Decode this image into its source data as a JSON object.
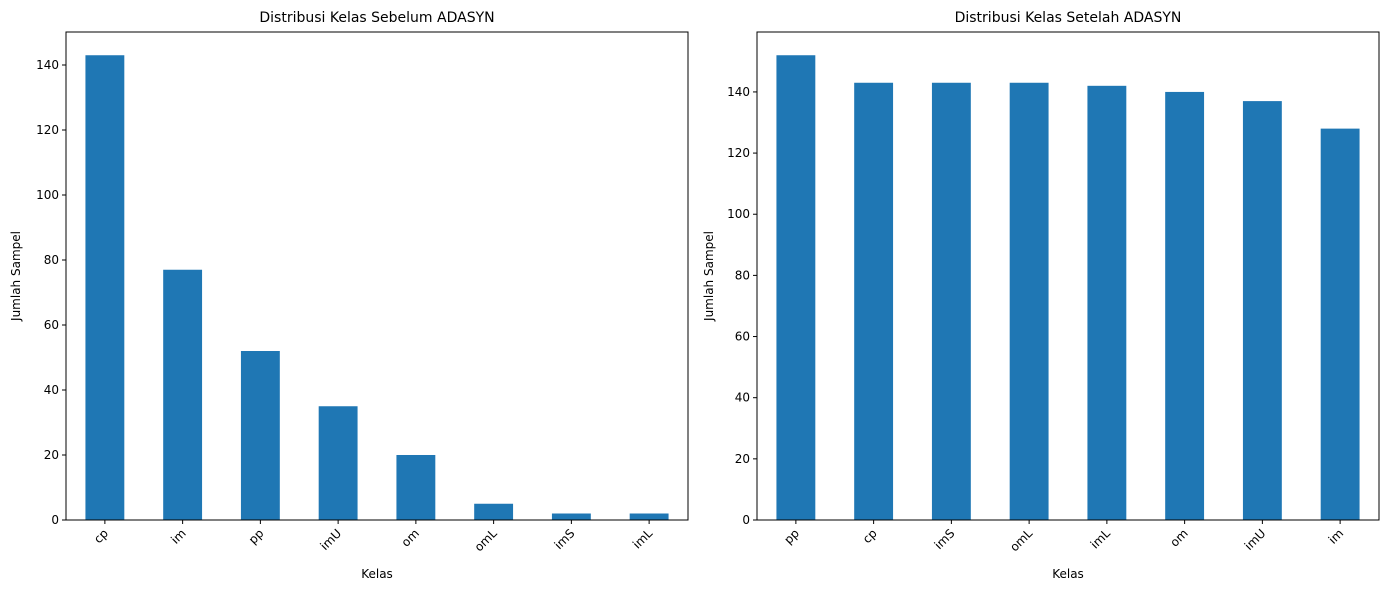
{
  "chart_data": [
    {
      "type": "bar",
      "title": "Distribusi Kelas Sebelum ADASYN",
      "xlabel": "Kelas",
      "ylabel": "Jumlah Sampel",
      "categories": [
        "cp",
        "im",
        "pp",
        "imU",
        "om",
        "omL",
        "imS",
        "imL"
      ],
      "values": [
        143,
        77,
        52,
        35,
        20,
        5,
        2,
        2
      ],
      "ylim": [
        0,
        150.15
      ],
      "yticks": [
        0,
        20,
        40,
        60,
        80,
        100,
        120,
        140
      ],
      "color": "#1f77b4",
      "grid": false
    },
    {
      "type": "bar",
      "title": "Distribusi Kelas Setelah ADASYN",
      "xlabel": "Kelas",
      "ylabel": "Jumlah Sampel",
      "categories": [
        "pp",
        "cp",
        "imS",
        "omL",
        "imL",
        "om",
        "imU",
        "im"
      ],
      "values": [
        152,
        143,
        143,
        143,
        142,
        140,
        137,
        128
      ],
      "ylim": [
        0,
        159.6
      ],
      "yticks": [
        0,
        20,
        40,
        60,
        80,
        100,
        120,
        140
      ],
      "color": "#1f77b4",
      "grid": false
    }
  ]
}
